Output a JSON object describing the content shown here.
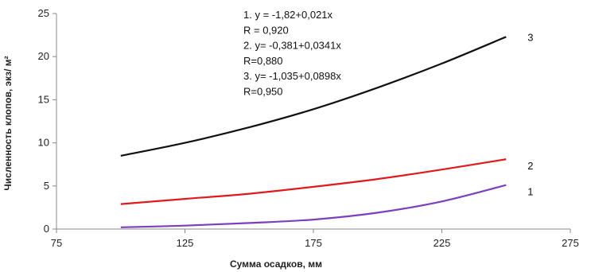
{
  "chart_data": {
    "type": "line",
    "title": "",
    "xlabel": "Сумма осадков, мм",
    "ylabel": "Численность клопов, экз/ м²",
    "xlim": [
      75,
      275
    ],
    "ylim": [
      0,
      25
    ],
    "x_ticks": [
      "75",
      "125",
      "175",
      "225",
      "275"
    ],
    "y_ticks": [
      "0",
      "5",
      "10",
      "15",
      "20",
      "25"
    ],
    "grid": false,
    "legend": "none",
    "series": [
      {
        "label": "1",
        "color": "#7b3fbf",
        "x": [
          100,
          125,
          150,
          175,
          200,
          225,
          250
        ],
        "y": [
          0.2,
          0.4,
          0.7,
          1.1,
          1.9,
          3.2,
          5.1
        ]
      },
      {
        "label": "2",
        "color": "#e0191b",
        "x": [
          100,
          125,
          150,
          175,
          200,
          225,
          250
        ],
        "y": [
          2.9,
          3.5,
          4.1,
          4.9,
          5.8,
          6.9,
          8.1
        ]
      },
      {
        "label": "3",
        "color": "#111111",
        "x": [
          100,
          125,
          150,
          175,
          200,
          225,
          250
        ],
        "y": [
          8.5,
          10.0,
          11.8,
          13.9,
          16.4,
          19.2,
          22.3
        ]
      }
    ],
    "annotations": [
      "1. y = -1,82+0,021x",
      "R = 0,920",
      "2. y= -0,381+0,0341x",
      "R=0,880",
      "3. y= -1,035+0,0898x",
      "R=0,950"
    ]
  }
}
